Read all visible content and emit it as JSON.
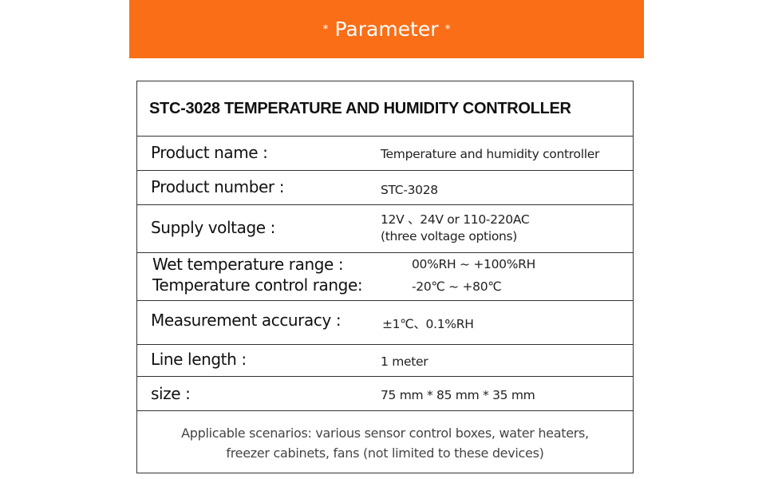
{
  "banner": {
    "star": "*",
    "title": "Parameter",
    "color": "#F96E17"
  },
  "table": {
    "title": "STC-3028 TEMPERATURE AND HUMIDITY CONTROLLER",
    "rows": [
      {
        "label": "Product name :",
        "value": "Temperature and humidity controller"
      },
      {
        "label": "Product number :",
        "value": "STC-3028"
      },
      {
        "label": "Supply voltage :",
        "value": "12V 、24V or 110-220AC",
        "value2": "(three voltage options)"
      },
      {
        "label": "Wet temperature range :",
        "value": "00%RH ~ +100%RH",
        "label2": "Temperature control range:",
        "value2": "-20℃ ~ +80℃"
      },
      {
        "label": "Measurement accuracy :",
        "value": "±1℃、0.1%RH"
      },
      {
        "label": "Line length :",
        "value": "1 meter"
      },
      {
        "label": "size :",
        "value": "75 mm * 85 mm * 35 mm"
      }
    ],
    "footer": {
      "line1": "Applicable scenarios: various sensor control boxes, water heaters,",
      "line2": "freezer cabinets, fans (not limited to these devices)"
    }
  }
}
